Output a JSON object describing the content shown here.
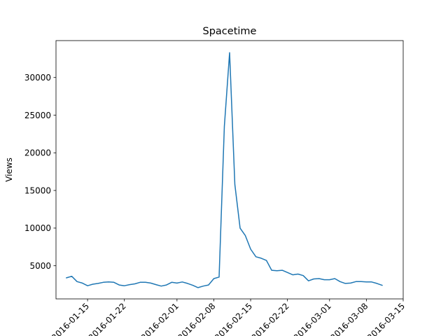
{
  "chart_data": {
    "type": "line",
    "title": "Spacetime",
    "xlabel": "",
    "ylabel": "Views",
    "grid": false,
    "legend": "none",
    "color": "#1f77b4",
    "x_start": "2016-01-11",
    "x_end": "2016-03-12",
    "xlim": [
      "2016-01-09",
      "2016-03-15"
    ],
    "ylim": [
      600,
      34900
    ],
    "x_ticks": [
      "2016-01-15",
      "2016-01-22",
      "2016-02-01",
      "2016-02-08",
      "2016-02-15",
      "2016-02-22",
      "2016-03-01",
      "2016-03-08",
      "2016-03-15"
    ],
    "x_tick_labels": [
      "2016-01-15",
      "2016-01-22",
      "2016-02-01",
      "2016-02-08",
      "2016-02-15",
      "2016-02-22",
      "2016-03-01",
      "2016-03-08",
      "2016-03-15"
    ],
    "y_ticks": [
      5000,
      10000,
      15000,
      20000,
      25000,
      30000
    ],
    "y_tick_labels": [
      "5000",
      "10000",
      "15000",
      "20000",
      "25000",
      "30000"
    ],
    "values": [
      3400,
      3600,
      2900,
      2700,
      2350,
      2550,
      2650,
      2800,
      2850,
      2800,
      2450,
      2350,
      2500,
      2600,
      2800,
      2800,
      2700,
      2500,
      2300,
      2450,
      2800,
      2700,
      2850,
      2650,
      2400,
      2100,
      2300,
      2450,
      3300,
      3500,
      23500,
      33300,
      15800,
      10000,
      9000,
      7200,
      6200,
      6000,
      5700,
      4400,
      4350,
      4400,
      4100,
      3800,
      3900,
      3700,
      3000,
      3250,
      3300,
      3150,
      3150,
      3300,
      2900,
      2650,
      2700,
      2900,
      2900,
      2850,
      2850,
      2650,
      2400
    ]
  }
}
